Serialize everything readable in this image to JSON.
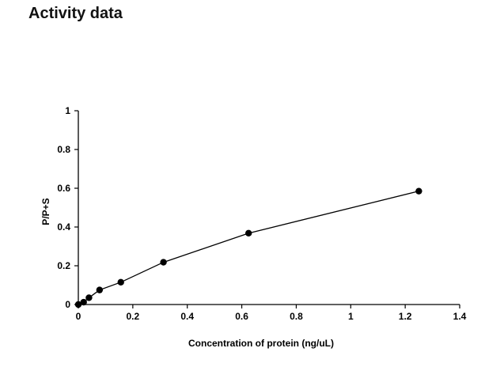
{
  "page": {
    "heading": "Activity data"
  },
  "chart_data": {
    "type": "line",
    "title": "",
    "xlabel": "Concentration of protein (ng/uL)",
    "ylabel": "P/P+S",
    "xlim": [
      0,
      1.4
    ],
    "ylim": [
      0,
      1
    ],
    "x_ticks": [
      "0",
      "0.2",
      "0.4",
      "0.6",
      "0.8",
      "1",
      "1.2",
      "1.4"
    ],
    "y_ticks": [
      "0",
      "0.2",
      "0.4",
      "0.6",
      "0.8",
      "1"
    ],
    "grid": false,
    "legend": "none",
    "markers": "filled-circle",
    "series": [
      {
        "x": [
          0,
          0.0195,
          0.039,
          0.078,
          0.156,
          0.3125,
          0.625,
          1.25
        ],
        "y": [
          0.0,
          0.012,
          0.035,
          0.075,
          0.115,
          0.218,
          0.368,
          0.585
        ]
      }
    ],
    "colors": {
      "line": "#000000",
      "marker": "#000000",
      "axis": "#000000"
    }
  }
}
